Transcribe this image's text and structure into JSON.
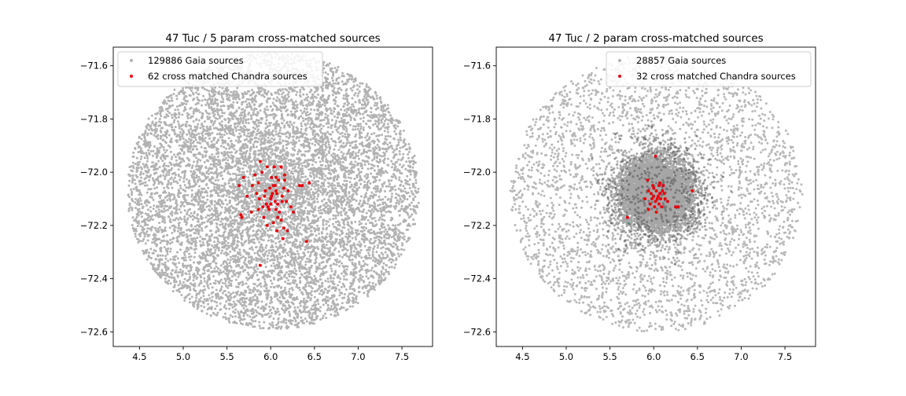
{
  "chart_data": [
    {
      "type": "scatter",
      "title": "47 Tuc / 5 param cross-matched sources",
      "xlim": [
        4.2,
        7.85
      ],
      "ylim": [
        -72.655,
        -71.53
      ],
      "xticks": [
        4.5,
        5.0,
        5.5,
        6.0,
        6.5,
        7.0,
        7.5
      ],
      "yticks": [
        -71.6,
        -71.8,
        -72.0,
        -72.2,
        -72.4,
        -72.6
      ],
      "xtick_labels": [
        "4.5",
        "5.0",
        "5.5",
        "6.0",
        "6.5",
        "7.0",
        "7.5"
      ],
      "ytick_labels": [
        "−71.6",
        "−71.8",
        "−72.0",
        "−72.2",
        "−72.4",
        "−72.6"
      ],
      "legend_position": "top-left",
      "gaia": {
        "name": "129886 Gaia sources",
        "color": "#000000",
        "center": [
          6.03,
          -72.07
        ],
        "extent_x": 1.67,
        "extent_y": 0.52,
        "point_count_rendered": 9000
      },
      "chandra": {
        "name": "62 cross matched Chandra sources",
        "color": "#e8000b",
        "points": [
          [
            5.88,
            -71.96
          ],
          [
            5.96,
            -71.98
          ],
          [
            6.04,
            -71.98
          ],
          [
            6.12,
            -71.98
          ],
          [
            5.9,
            -72.0
          ],
          [
            5.82,
            -72.01
          ],
          [
            6.16,
            -72.01
          ],
          [
            6.01,
            -72.02
          ],
          [
            5.69,
            -72.02
          ],
          [
            6.09,
            -72.03
          ],
          [
            6.16,
            -72.03
          ],
          [
            5.86,
            -72.04
          ],
          [
            6.05,
            -72.05
          ],
          [
            5.64,
            -72.05
          ],
          [
            5.79,
            -72.05
          ],
          [
            6.44,
            -72.04
          ],
          [
            6.33,
            -72.05
          ],
          [
            6.36,
            -72.05
          ],
          [
            6.15,
            -72.06
          ],
          [
            6.06,
            -72.07
          ],
          [
            5.94,
            -72.07
          ],
          [
            6.02,
            -72.08
          ],
          [
            6.07,
            -72.08
          ],
          [
            6.01,
            -72.09
          ],
          [
            6.13,
            -72.09
          ],
          [
            5.73,
            -72.09
          ],
          [
            5.87,
            -72.1
          ],
          [
            6.13,
            -72.11
          ],
          [
            6.05,
            -72.11
          ],
          [
            6.18,
            -72.11
          ],
          [
            5.95,
            -72.12
          ],
          [
            6.0,
            -72.12
          ],
          [
            5.91,
            -72.13
          ],
          [
            5.97,
            -72.13
          ],
          [
            6.06,
            -72.14
          ],
          [
            5.98,
            -72.14
          ],
          [
            5.86,
            -72.14
          ],
          [
            5.78,
            -72.15
          ],
          [
            6.1,
            -72.15
          ],
          [
            6.26,
            -72.15
          ],
          [
            5.66,
            -72.16
          ],
          [
            5.67,
            -72.17
          ],
          [
            6.08,
            -72.17
          ],
          [
            6.12,
            -72.18
          ],
          [
            6.03,
            -72.19
          ],
          [
            6.15,
            -72.21
          ],
          [
            5.96,
            -72.2
          ],
          [
            6.07,
            -72.22
          ],
          [
            6.19,
            -72.22
          ],
          [
            6.14,
            -72.25
          ],
          [
            6.41,
            -72.26
          ],
          [
            5.88,
            -72.35
          ],
          [
            5.99,
            -72.06
          ],
          [
            6.08,
            -72.12
          ],
          [
            5.93,
            -72.09
          ],
          [
            6.03,
            -72.05
          ],
          [
            6.2,
            -72.07
          ],
          [
            5.84,
            -72.08
          ],
          [
            6.06,
            -72.02
          ],
          [
            5.92,
            -72.17
          ],
          [
            6.23,
            -72.13
          ],
          [
            6.0,
            -72.1
          ]
        ]
      }
    },
    {
      "type": "scatter",
      "title": "47 Tuc / 2 param cross-matched sources",
      "xlim": [
        4.2,
        7.85
      ],
      "ylim": [
        -72.655,
        -71.53
      ],
      "xticks": [
        4.5,
        5.0,
        5.5,
        6.0,
        6.5,
        7.0,
        7.5
      ],
      "yticks": [
        -71.6,
        -71.8,
        -72.0,
        -72.2,
        -72.4,
        -72.6
      ],
      "xtick_labels": [
        "4.5",
        "5.0",
        "5.5",
        "6.0",
        "6.5",
        "7.0",
        "7.5"
      ],
      "ytick_labels": [
        "−71.6",
        "−71.8",
        "−72.0",
        "−72.2",
        "−72.4",
        "−72.6"
      ],
      "legend_position": "top-right",
      "gaia": {
        "name": "28857 Gaia sources",
        "color": "#000000",
        "center": [
          6.03,
          -72.08
        ],
        "extent_x": 1.67,
        "extent_y": 0.52,
        "core_radius_x": 0.38,
        "core_radius_y": 0.13,
        "point_count_rendered": 9000
      },
      "chandra": {
        "name": "32 cross matched Chandra sources",
        "color": "#e8000b",
        "points": [
          [
            6.02,
            -71.94
          ],
          [
            5.93,
            -72.03
          ],
          [
            6.06,
            -72.05
          ],
          [
            6.0,
            -72.06
          ],
          [
            5.94,
            -72.07
          ],
          [
            6.1,
            -72.07
          ],
          [
            6.03,
            -72.07
          ],
          [
            6.07,
            -72.08
          ],
          [
            5.97,
            -72.08
          ],
          [
            6.12,
            -72.08
          ],
          [
            6.44,
            -72.07
          ],
          [
            6.0,
            -72.09
          ],
          [
            6.05,
            -72.09
          ],
          [
            5.98,
            -72.1
          ],
          [
            6.08,
            -72.1
          ],
          [
            6.13,
            -72.1
          ],
          [
            6.02,
            -72.11
          ],
          [
            5.96,
            -72.12
          ],
          [
            6.06,
            -72.12
          ],
          [
            6.16,
            -72.11
          ],
          [
            6.01,
            -72.13
          ],
          [
            5.94,
            -72.14
          ],
          [
            6.25,
            -72.13
          ],
          [
            6.28,
            -72.13
          ],
          [
            6.09,
            -72.13
          ],
          [
            5.9,
            -72.1
          ],
          [
            6.04,
            -72.1
          ],
          [
            5.99,
            -72.05
          ],
          [
            6.11,
            -72.05
          ],
          [
            5.7,
            -72.17
          ],
          [
            6.03,
            -72.15
          ],
          [
            6.07,
            -72.04
          ]
        ]
      }
    }
  ]
}
